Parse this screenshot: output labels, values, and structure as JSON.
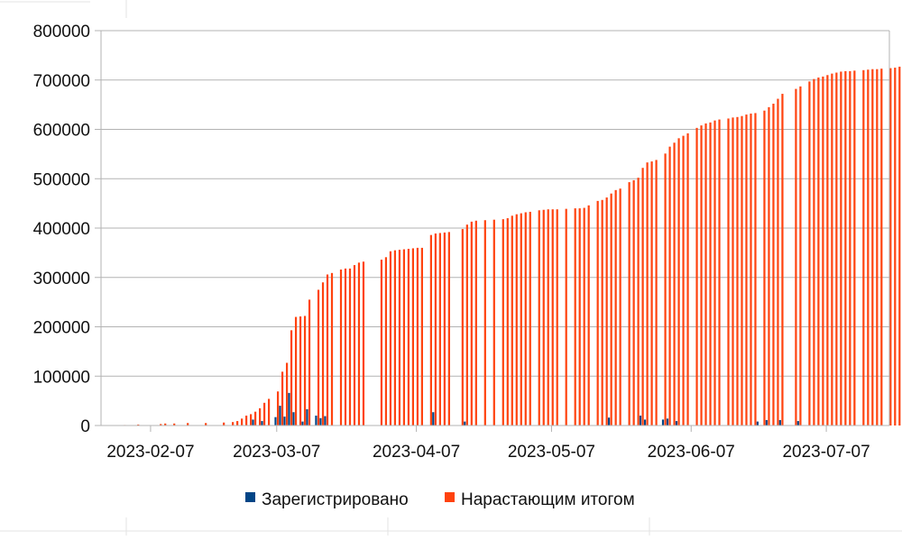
{
  "chart_data": {
    "type": "bar",
    "title": "",
    "xlabel": "",
    "ylabel": "",
    "ylim": [
      0,
      800000
    ],
    "y_ticks": [
      "0",
      "100000",
      "200000",
      "300000",
      "400000",
      "500000",
      "600000",
      "700000",
      "800000"
    ],
    "x_ticks": [
      "2023-02-07",
      "2023-03-07",
      "2023-04-07",
      "2023-05-07",
      "2023-06-07",
      "2023-07-07"
    ],
    "x_range": [
      "2023-01-27",
      "2023-07-21"
    ],
    "grid": "horizontal",
    "legend_position": "bottom",
    "colors": {
      "registered": "#004586",
      "cumulative": "#ff420e",
      "grid": "#b3b3b3"
    },
    "series": [
      {
        "name": "Зарегистрировано",
        "key": "registered",
        "points": [
          [
            "2023-03-07",
            17000
          ],
          [
            "2023-03-08",
            40000
          ],
          [
            "2023-03-09",
            18000
          ],
          [
            "2023-03-10",
            66000
          ],
          [
            "2023-03-11",
            27000
          ],
          [
            "2023-03-13",
            8000
          ],
          [
            "2023-03-14",
            33000
          ],
          [
            "2023-03-16",
            20000
          ],
          [
            "2023-03-17",
            15000
          ],
          [
            "2023-03-18",
            19000
          ],
          [
            "2023-03-02",
            12000
          ],
          [
            "2023-03-04",
            9000
          ],
          [
            "2023-04-11",
            27000
          ],
          [
            "2023-04-18",
            8000
          ],
          [
            "2023-05-20",
            16000
          ],
          [
            "2023-05-27",
            20000
          ],
          [
            "2023-05-28",
            12000
          ],
          [
            "2023-06-01",
            12000
          ],
          [
            "2023-06-02",
            14000
          ],
          [
            "2023-06-04",
            9000
          ],
          [
            "2023-06-22",
            8000
          ],
          [
            "2023-06-24",
            11000
          ],
          [
            "2023-06-27",
            11000
          ],
          [
            "2023-07-01",
            9000
          ]
        ]
      },
      {
        "name": "Нарастающим итогом",
        "key": "cumulative",
        "points": [
          [
            "2023-02-01",
            1000
          ],
          [
            "2023-02-04",
            2000
          ],
          [
            "2023-02-09",
            3000
          ],
          [
            "2023-02-10",
            4000
          ],
          [
            "2023-02-12",
            4000
          ],
          [
            "2023-02-15",
            5000
          ],
          [
            "2023-02-19",
            5000
          ],
          [
            "2023-02-23",
            6000
          ],
          [
            "2023-02-25",
            7000
          ],
          [
            "2023-02-26",
            9000
          ],
          [
            "2023-02-27",
            14000
          ],
          [
            "2023-02-28",
            20000
          ],
          [
            "2023-03-01",
            23000
          ],
          [
            "2023-03-02",
            28000
          ],
          [
            "2023-03-03",
            35000
          ],
          [
            "2023-03-04",
            46000
          ],
          [
            "2023-03-05",
            54000
          ],
          [
            "2023-03-07",
            69000
          ],
          [
            "2023-03-08",
            109000
          ],
          [
            "2023-03-09",
            127000
          ],
          [
            "2023-03-10",
            193000
          ],
          [
            "2023-03-11",
            220000
          ],
          [
            "2023-03-12",
            221000
          ],
          [
            "2023-03-13",
            222000
          ],
          [
            "2023-03-14",
            255000
          ],
          [
            "2023-03-16",
            275000
          ],
          [
            "2023-03-17",
            290000
          ],
          [
            "2023-03-18",
            306000
          ],
          [
            "2023-03-19",
            309000
          ],
          [
            "2023-03-21",
            316000
          ],
          [
            "2023-03-22",
            318000
          ],
          [
            "2023-03-23",
            318000
          ],
          [
            "2023-03-24",
            325000
          ],
          [
            "2023-03-25",
            330000
          ],
          [
            "2023-03-26",
            332000
          ],
          [
            "2023-03-30",
            336000
          ],
          [
            "2023-03-31",
            341000
          ],
          [
            "2023-04-01",
            353000
          ],
          [
            "2023-04-02",
            355000
          ],
          [
            "2023-04-03",
            356000
          ],
          [
            "2023-04-04",
            357000
          ],
          [
            "2023-04-05",
            358000
          ],
          [
            "2023-04-06",
            359000
          ],
          [
            "2023-04-07",
            360000
          ],
          [
            "2023-04-08",
            360000
          ],
          [
            "2023-04-10",
            386000
          ],
          [
            "2023-04-11",
            389000
          ],
          [
            "2023-04-12",
            390000
          ],
          [
            "2023-04-13",
            391000
          ],
          [
            "2023-04-14",
            392000
          ],
          [
            "2023-04-17",
            398000
          ],
          [
            "2023-04-18",
            407000
          ],
          [
            "2023-04-19",
            413000
          ],
          [
            "2023-04-20",
            415000
          ],
          [
            "2023-04-22",
            416000
          ],
          [
            "2023-04-24",
            417000
          ],
          [
            "2023-04-26",
            418000
          ],
          [
            "2023-04-27",
            420000
          ],
          [
            "2023-04-28",
            425000
          ],
          [
            "2023-04-29",
            428000
          ],
          [
            "2023-04-30",
            430000
          ],
          [
            "2023-05-01",
            432000
          ],
          [
            "2023-05-02",
            433000
          ],
          [
            "2023-05-04",
            436000
          ],
          [
            "2023-05-05",
            437000
          ],
          [
            "2023-05-06",
            438000
          ],
          [
            "2023-05-07",
            438000
          ],
          [
            "2023-05-08",
            438000
          ],
          [
            "2023-05-10",
            439000
          ],
          [
            "2023-05-12",
            440000
          ],
          [
            "2023-05-13",
            440000
          ],
          [
            "2023-05-14",
            441000
          ],
          [
            "2023-05-15",
            446000
          ],
          [
            "2023-05-17",
            455000
          ],
          [
            "2023-05-18",
            457000
          ],
          [
            "2023-05-19",
            462000
          ],
          [
            "2023-05-20",
            470000
          ],
          [
            "2023-05-21",
            477000
          ],
          [
            "2023-05-22",
            480000
          ],
          [
            "2023-05-24",
            493000
          ],
          [
            "2023-05-25",
            497000
          ],
          [
            "2023-05-26",
            502000
          ],
          [
            "2023-05-27",
            522000
          ],
          [
            "2023-05-28",
            533000
          ],
          [
            "2023-05-29",
            535000
          ],
          [
            "2023-05-30",
            538000
          ],
          [
            "2023-06-01",
            551000
          ],
          [
            "2023-06-02",
            565000
          ],
          [
            "2023-06-03",
            573000
          ],
          [
            "2023-06-04",
            582000
          ],
          [
            "2023-06-05",
            587000
          ],
          [
            "2023-06-06",
            592000
          ],
          [
            "2023-06-08",
            603000
          ],
          [
            "2023-06-09",
            608000
          ],
          [
            "2023-06-10",
            612000
          ],
          [
            "2023-06-11",
            614000
          ],
          [
            "2023-06-12",
            618000
          ],
          [
            "2023-06-13",
            620000
          ],
          [
            "2023-06-15",
            622000
          ],
          [
            "2023-06-16",
            624000
          ],
          [
            "2023-06-17",
            625000
          ],
          [
            "2023-06-18",
            627000
          ],
          [
            "2023-06-19",
            630000
          ],
          [
            "2023-06-20",
            632000
          ],
          [
            "2023-06-21",
            633000
          ],
          [
            "2023-06-23",
            638000
          ],
          [
            "2023-06-24",
            645000
          ],
          [
            "2023-06-25",
            652000
          ],
          [
            "2023-06-26",
            662000
          ],
          [
            "2023-06-27",
            672000
          ],
          [
            "2023-06-30",
            682000
          ],
          [
            "2023-07-01",
            687000
          ],
          [
            "2023-07-03",
            697000
          ],
          [
            "2023-07-04",
            702000
          ],
          [
            "2023-07-05",
            705000
          ],
          [
            "2023-07-06",
            707000
          ],
          [
            "2023-07-07",
            710000
          ],
          [
            "2023-07-08",
            713000
          ],
          [
            "2023-07-09",
            715000
          ],
          [
            "2023-07-10",
            717000
          ],
          [
            "2023-07-11",
            718000
          ],
          [
            "2023-07-12",
            718000
          ],
          [
            "2023-07-13",
            719000
          ],
          [
            "2023-07-15",
            720000
          ],
          [
            "2023-07-16",
            721000
          ],
          [
            "2023-07-17",
            722000
          ],
          [
            "2023-07-18",
            722000
          ],
          [
            "2023-07-19",
            723000
          ],
          [
            "2023-07-21",
            724000
          ],
          [
            "2023-07-22",
            725000
          ],
          [
            "2023-07-23",
            727000
          ],
          [
            "2023-07-24",
            730000
          ],
          [
            "2023-07-25",
            732000
          ]
        ]
      }
    ]
  }
}
